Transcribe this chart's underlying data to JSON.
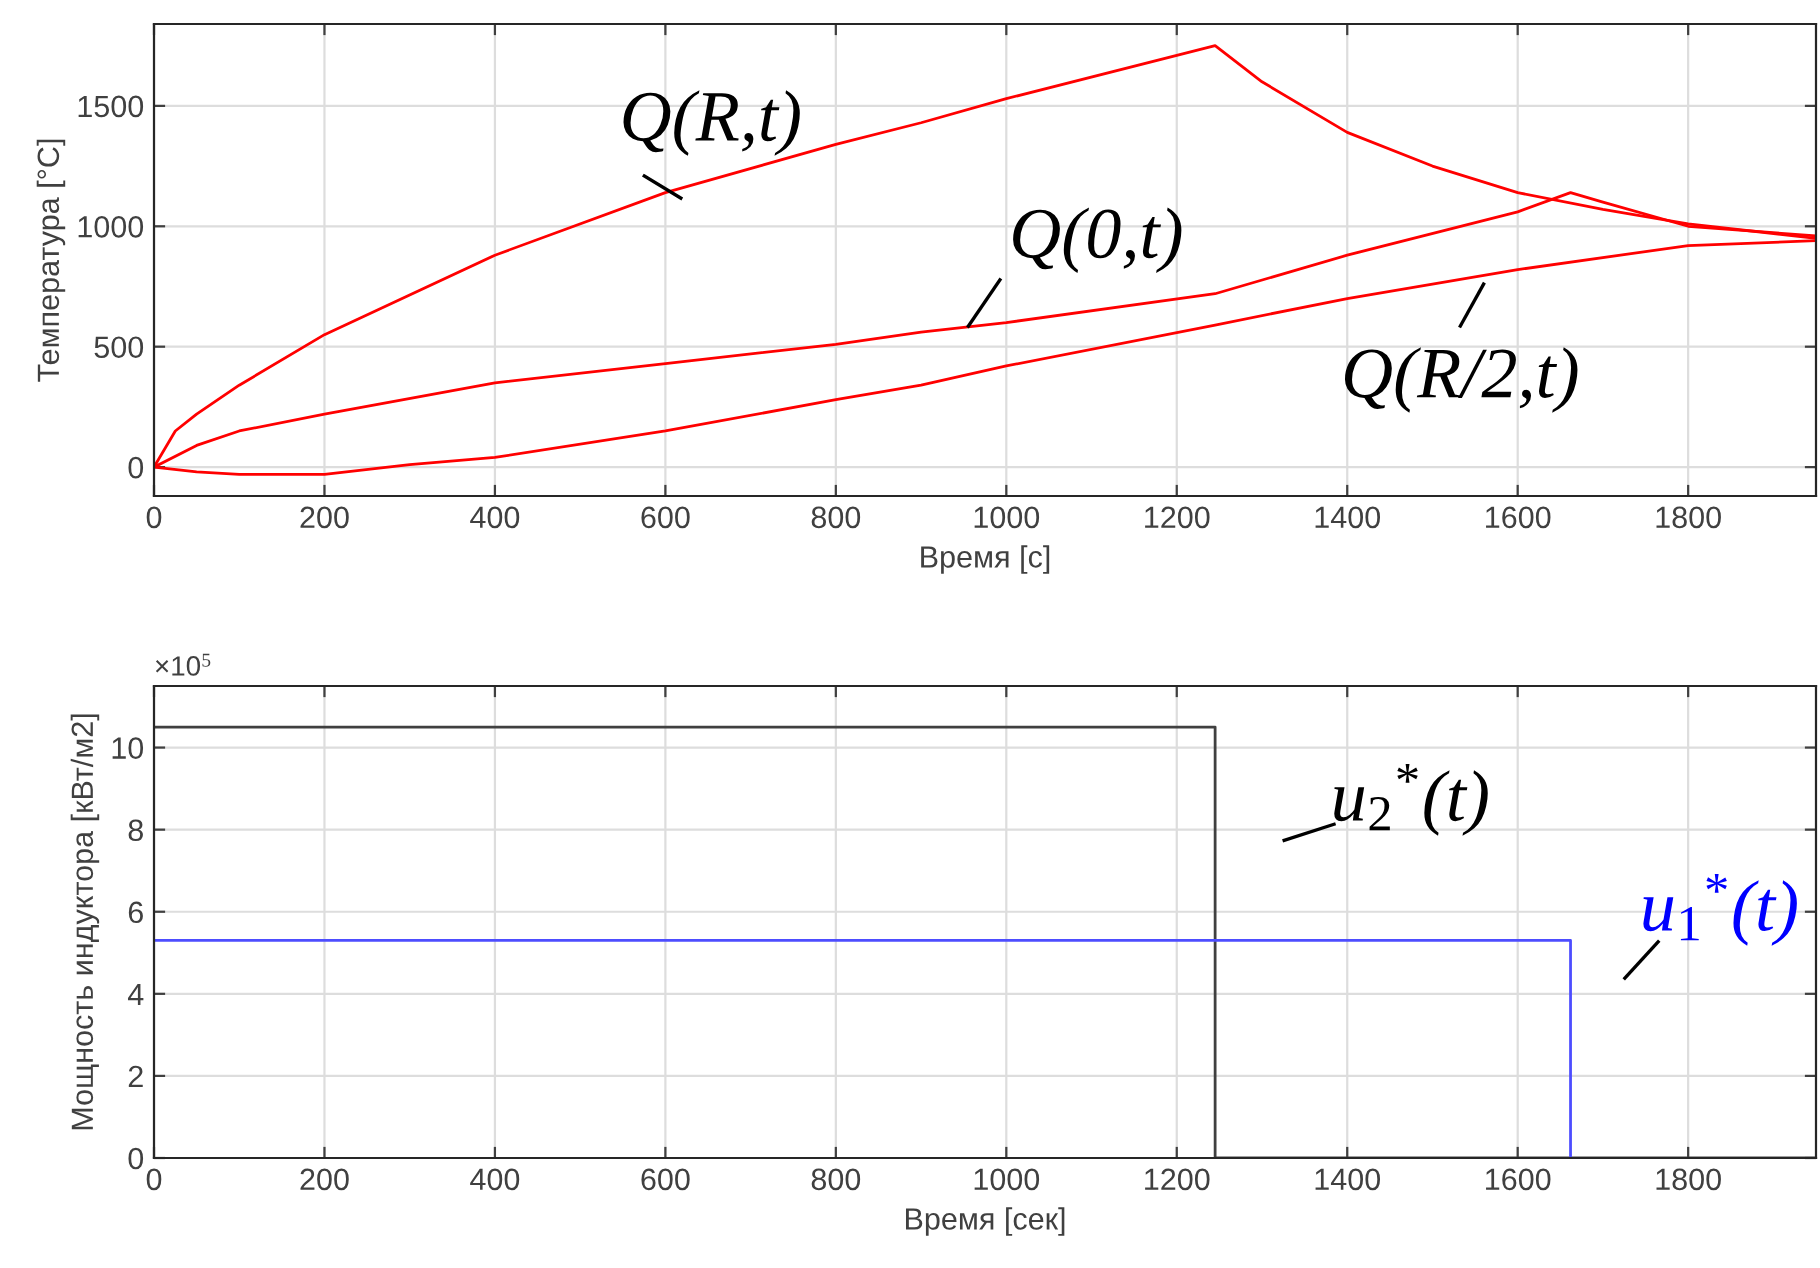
{
  "chart_data": [
    {
      "type": "line",
      "xlabel": "Время [с]",
      "ylabel": "Температура [°C]",
      "xlim": [
        0,
        1950
      ],
      "xticks": [
        0,
        200,
        400,
        600,
        800,
        1000,
        1200,
        1400,
        1600,
        1800
      ],
      "ylim": [
        -120,
        1840
      ],
      "yticks": [
        0,
        500,
        1000,
        1500
      ],
      "grid": true,
      "series": [
        {
          "color": "#ff0000",
          "x": [
            0,
            25,
            50,
            100,
            200,
            400,
            600,
            800,
            900,
            1000,
            1245,
            1300,
            1400,
            1500,
            1600,
            1700,
            1800,
            1950
          ],
          "values": [
            0,
            150,
            220,
            340,
            550,
            880,
            1140,
            1340,
            1430,
            1530,
            1750,
            1600,
            1390,
            1250,
            1140,
            1070,
            1010,
            950
          ]
        },
        {
          "color": "#ff0000",
          "x": [
            0,
            50,
            100,
            200,
            400,
            600,
            800,
            900,
            1000,
            1245,
            1400,
            1600,
            1662,
            1700,
            1800,
            1950
          ],
          "values": [
            0,
            90,
            150,
            220,
            350,
            430,
            510,
            560,
            600,
            720,
            880,
            1060,
            1140,
            1100,
            1000,
            960
          ]
        },
        {
          "color": "#ff0000",
          "x": [
            0,
            50,
            100,
            170,
            200,
            300,
            400,
            600,
            800,
            900,
            1000,
            1245,
            1400,
            1600,
            1800,
            1950
          ],
          "values": [
            0,
            -20,
            -30,
            -30,
            -30,
            10,
            40,
            150,
            280,
            340,
            420,
            590,
            700,
            820,
            920,
            940
          ]
        }
      ],
      "annotations": [
        "Q(R,t)",
        "Q(0,t)",
        "Q(R/2,t)"
      ]
    },
    {
      "type": "step",
      "xlabel": "Время [сек]",
      "ylabel": "Мощность индуктора [кВт/м2]",
      "xlim": [
        0,
        1950
      ],
      "xticks": [
        0,
        200,
        400,
        600,
        800,
        1000,
        1200,
        1400,
        1600,
        1800
      ],
      "ylim": [
        0,
        11.5
      ],
      "yticks": [
        0,
        2,
        4,
        6,
        8,
        10
      ],
      "grid": true,
      "series": [
        {
          "color": "#404040",
          "x": [
            0,
            1245,
            1950
          ],
          "values": [
            10.5,
            0,
            0
          ]
        },
        {
          "color": "#4d4dff",
          "x": [
            0,
            1662
          ],
          "values": [
            5.3,
            0
          ]
        }
      ],
      "annotations": [
        "×10$^{5}$",
        "u$_{2}$$^{*}$(t)",
        "u$_{1}$$^{*}$(t)"
      ]
    }
  ]
}
